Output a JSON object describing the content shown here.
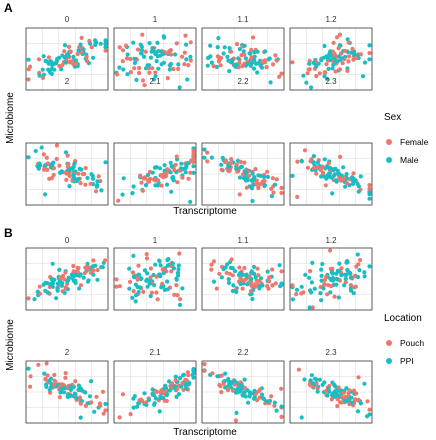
{
  "colors": {
    "female_pouch": "#F0776D",
    "male_ppi": "#17BEC4",
    "panel_bg": "#FFFFFF",
    "strip_bg": "#FFFFFF",
    "grid": "#D9D9D9",
    "border": "#333333"
  },
  "chart_data": [
    {
      "panel_label": "A",
      "type": "scatter",
      "xlabel": "Transcriptome",
      "ylabel": "Microbiome",
      "facets": [
        "0",
        "1",
        "1.1",
        "1.2",
        "2",
        "2.1",
        "2.2",
        "2.3"
      ],
      "legend": {
        "title": "Sex",
        "position": "right",
        "entries": [
          "Female",
          "Male"
        ]
      },
      "grid": true,
      "trends": [
        {
          "facet": "0",
          "pattern": "positive, tight",
          "x_mean": 0.5,
          "slope": 0.45,
          "spread": 0.1
        },
        {
          "facet": "1",
          "pattern": "diffuse cloud",
          "x_mean": 0.5,
          "slope": 0.1,
          "spread": 0.18
        },
        {
          "facet": "1.1",
          "pattern": "diffuse, slight negative",
          "x_mean": 0.55,
          "slope": -0.15,
          "spread": 0.14
        },
        {
          "facet": "1.2",
          "pattern": "diffuse, slight positive",
          "x_mean": 0.55,
          "slope": 0.3,
          "spread": 0.14
        },
        {
          "facet": "2",
          "pattern": "negative",
          "x_mean": 0.55,
          "slope": -0.55,
          "spread": 0.09
        },
        {
          "facet": "2.1",
          "pattern": "positive",
          "x_mean": 0.65,
          "slope": 0.55,
          "spread": 0.09
        },
        {
          "facet": "2.2",
          "pattern": "negative",
          "x_mean": 0.55,
          "slope": -0.55,
          "spread": 0.08
        },
        {
          "facet": "2.3",
          "pattern": "negative",
          "x_mean": 0.55,
          "slope": -0.55,
          "spread": 0.08
        }
      ]
    },
    {
      "panel_label": "B",
      "type": "scatter",
      "xlabel": "Transcriptome",
      "ylabel": "Microbiome",
      "facets": [
        "0",
        "1",
        "1.1",
        "1.2",
        "2",
        "2.1",
        "2.2",
        "2.3"
      ],
      "legend": {
        "title": "Location",
        "position": "right",
        "entries": [
          "Pouch",
          "PPI"
        ]
      },
      "grid": true,
      "trends": [
        {
          "facet": "0",
          "pattern": "positive, tight",
          "x_mean": 0.5,
          "slope": 0.45,
          "spread": 0.1
        },
        {
          "facet": "1",
          "pattern": "diffuse cloud",
          "x_mean": 0.5,
          "slope": 0.1,
          "spread": 0.18
        },
        {
          "facet": "1.1",
          "pattern": "diffuse, slight negative",
          "x_mean": 0.55,
          "slope": -0.15,
          "spread": 0.14
        },
        {
          "facet": "1.2",
          "pattern": "diffuse, slight positive",
          "x_mean": 0.55,
          "slope": 0.3,
          "spread": 0.14
        },
        {
          "facet": "2",
          "pattern": "negative",
          "x_mean": 0.55,
          "slope": -0.55,
          "spread": 0.09
        },
        {
          "facet": "2.1",
          "pattern": "positive",
          "x_mean": 0.65,
          "slope": 0.55,
          "spread": 0.09
        },
        {
          "facet": "2.2",
          "pattern": "negative",
          "x_mean": 0.55,
          "slope": -0.55,
          "spread": 0.08
        },
        {
          "facet": "2.3",
          "pattern": "negative",
          "x_mean": 0.55,
          "slope": -0.55,
          "spread": 0.08
        }
      ]
    }
  ]
}
